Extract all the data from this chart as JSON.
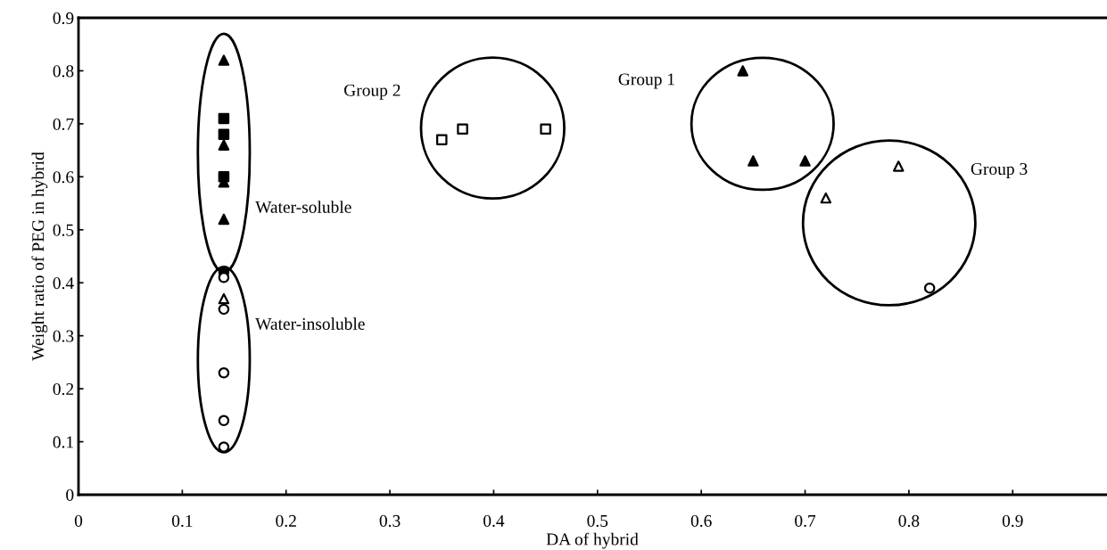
{
  "chart_data": {
    "type": "scatter",
    "xlabel": "DA of hybrid",
    "ylabel": "Weight ratio of PEG in hybrid",
    "xlim": [
      0,
      0.99
    ],
    "ylim": [
      0,
      0.9
    ],
    "xticks": [
      0,
      0.1,
      0.2,
      0.3,
      0.4,
      0.5,
      0.6,
      0.7,
      0.8,
      0.9
    ],
    "yticks": [
      0,
      0.1,
      0.2,
      0.3,
      0.4,
      0.5,
      0.6,
      0.7,
      0.8,
      0.9
    ],
    "grid": false,
    "legend": false,
    "series": [
      {
        "color": "#000000",
        "marker": "triangle",
        "x": [
          0.14,
          0.14,
          0.14,
          0.14,
          0.64,
          0.65,
          0.7
        ],
        "values": [
          0.82,
          0.66,
          0.59,
          0.52,
          0.8,
          0.63,
          0.63
        ]
      },
      {
        "color": "#000000",
        "marker": "square",
        "x": [
          0.14,
          0.14,
          0.14
        ],
        "values": [
          0.71,
          0.68,
          0.6
        ]
      },
      {
        "color": "#000000",
        "marker": "circle",
        "x": [
          0.14
        ],
        "values": [
          0.42
        ]
      },
      {
        "color": "#ffffff",
        "marker": "circle",
        "x": [
          0.14,
          0.14,
          0.14,
          0.14,
          0.14,
          0.82
        ],
        "values": [
          0.41,
          0.35,
          0.23,
          0.14,
          0.09,
          0.39
        ]
      },
      {
        "color": "#ffffff",
        "marker": "triangle",
        "x": [
          0.14,
          0.72,
          0.79
        ],
        "values": [
          0.37,
          0.56,
          0.62
        ]
      },
      {
        "color": "#ffffff",
        "marker": "square",
        "x": [
          0.35,
          0.37,
          0.45
        ],
        "values": [
          0.67,
          0.69,
          0.69
        ]
      }
    ],
    "annotations": [
      "Water-soluble",
      "Water-insoluble",
      "Group 2",
      "Group 1",
      "Group 3"
    ]
  }
}
